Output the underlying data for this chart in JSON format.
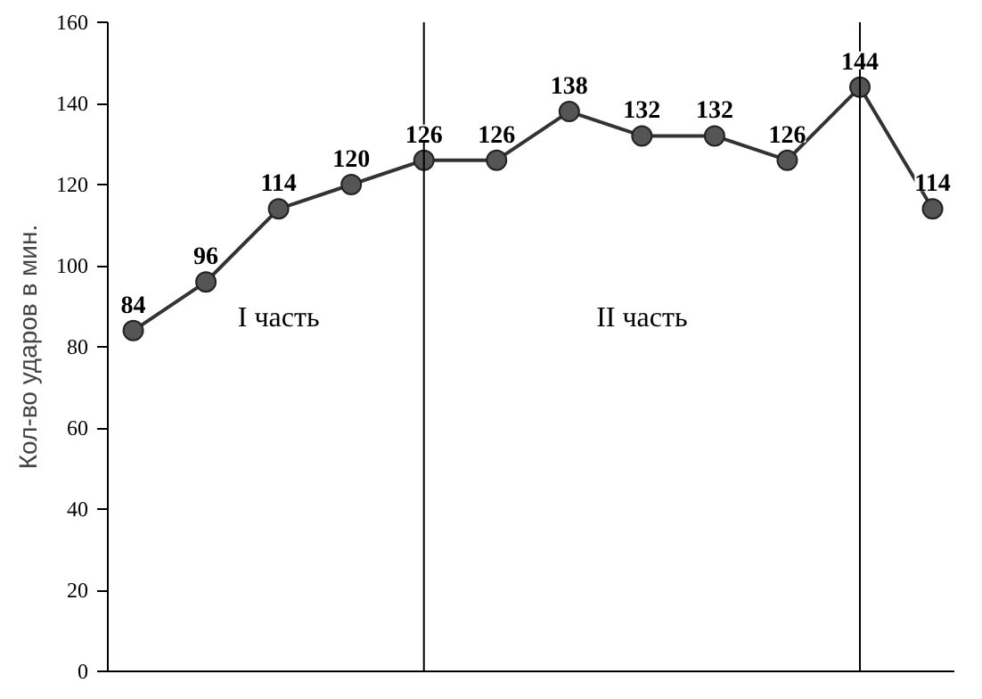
{
  "chart_data": {
    "type": "line",
    "ylabel": "Кол-во ударов в мин.",
    "categories": [
      null,
      null,
      null,
      null,
      null,
      null,
      null,
      null,
      null,
      null,
      null,
      null
    ],
    "series": [
      {
        "color": "#333333",
        "values": [
          84,
          96,
          114,
          120,
          126,
          126,
          138,
          132,
          132,
          126,
          144,
          114
        ]
      }
    ],
    "ylim": [
      0,
      160
    ],
    "yticks": [
      0,
      20,
      40,
      60,
      80,
      100,
      120,
      140,
      160
    ],
    "grid": false,
    "marker": "circle",
    "line_style": "solid",
    "data_labels": true,
    "annotations": [
      "I часть",
      "II часть"
    ]
  }
}
